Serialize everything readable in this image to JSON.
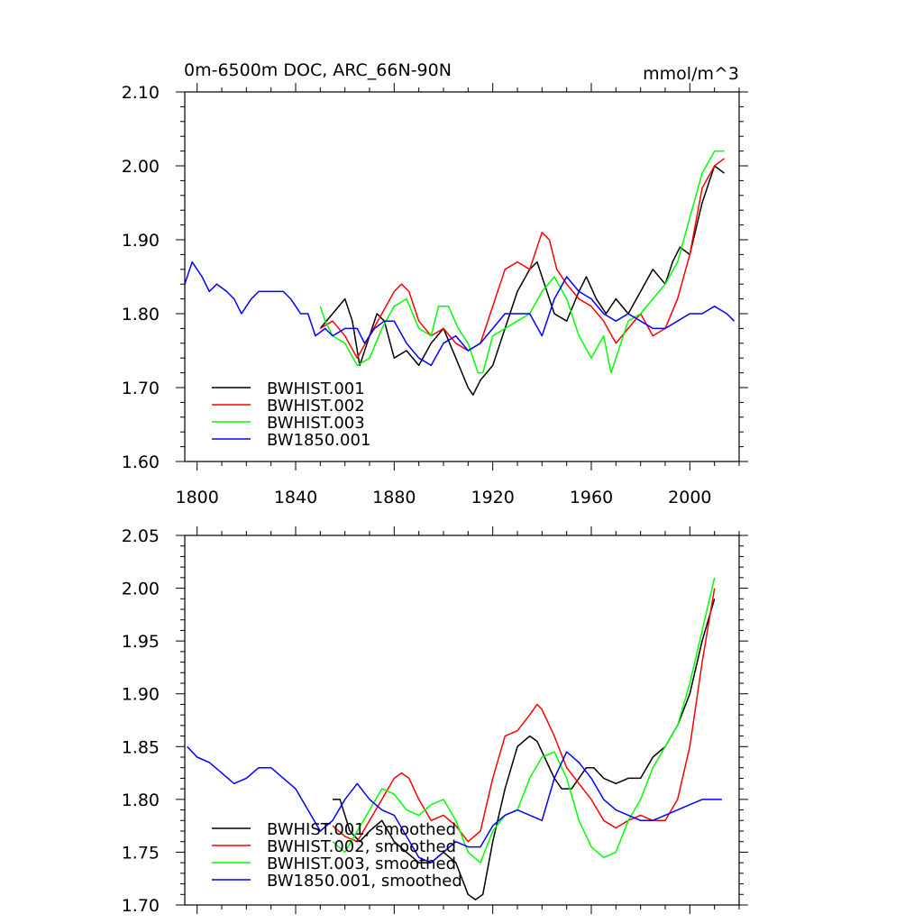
{
  "chart_data": [
    {
      "type": "line",
      "title": "0m-6500m DOC, ARC_66N-90N",
      "units": "mmol/m^3",
      "xlim": [
        1795,
        2020
      ],
      "ylim": [
        1.6,
        2.1
      ],
      "xticks": [
        1800,
        1840,
        1880,
        1920,
        1960,
        2000
      ],
      "xtick_labels": [
        "1800",
        "1840",
        "1880",
        "1920",
        "1960",
        "2000"
      ],
      "yticks": [
        1.6,
        1.7,
        1.8,
        1.9,
        2.0,
        2.1
      ],
      "ytick_labels": [
        "1.60",
        "1.70",
        "1.80",
        "1.90",
        "2.00",
        "2.10"
      ],
      "legend": [
        "BWHIST.001",
        "BWHIST.002",
        "BWHIST.003",
        "BW1850.001"
      ],
      "series": [
        {
          "name": "BWHIST.001",
          "color": "#000000",
          "x": [
            1850,
            1855,
            1860,
            1863,
            1866,
            1870,
            1873,
            1876,
            1880,
            1885,
            1890,
            1895,
            1900,
            1905,
            1910,
            1912,
            1915,
            1920,
            1925,
            1930,
            1935,
            1938,
            1940,
            1945,
            1950,
            1955,
            1958,
            1962,
            1966,
            1970,
            1975,
            1980,
            1985,
            1990,
            1993,
            1996,
            2000,
            2005,
            2010,
            2014
          ],
          "y": [
            1.78,
            1.8,
            1.82,
            1.79,
            1.73,
            1.77,
            1.8,
            1.79,
            1.74,
            1.75,
            1.73,
            1.76,
            1.78,
            1.74,
            1.7,
            1.69,
            1.71,
            1.73,
            1.78,
            1.83,
            1.86,
            1.87,
            1.85,
            1.8,
            1.79,
            1.83,
            1.85,
            1.82,
            1.8,
            1.82,
            1.8,
            1.83,
            1.86,
            1.84,
            1.87,
            1.89,
            1.88,
            1.95,
            2.0,
            1.99
          ]
        },
        {
          "name": "BWHIST.002",
          "color": "#ff0000",
          "x": [
            1850,
            1855,
            1860,
            1865,
            1870,
            1875,
            1880,
            1883,
            1886,
            1890,
            1895,
            1900,
            1905,
            1910,
            1915,
            1920,
            1925,
            1930,
            1935,
            1938,
            1940,
            1943,
            1946,
            1950,
            1955,
            1960,
            1965,
            1970,
            1975,
            1980,
            1985,
            1990,
            1995,
            2000,
            2005,
            2010,
            2014
          ],
          "y": [
            1.78,
            1.79,
            1.77,
            1.74,
            1.77,
            1.8,
            1.83,
            1.84,
            1.83,
            1.79,
            1.77,
            1.78,
            1.76,
            1.75,
            1.76,
            1.81,
            1.86,
            1.87,
            1.86,
            1.89,
            1.91,
            1.9,
            1.86,
            1.84,
            1.82,
            1.81,
            1.79,
            1.76,
            1.78,
            1.8,
            1.77,
            1.78,
            1.82,
            1.88,
            1.97,
            2.0,
            2.01
          ]
        },
        {
          "name": "BWHIST.003",
          "color": "#00ff00",
          "x": [
            1850,
            1852,
            1855,
            1860,
            1865,
            1870,
            1875,
            1880,
            1885,
            1890,
            1895,
            1898,
            1902,
            1906,
            1910,
            1914,
            1916,
            1920,
            1925,
            1930,
            1935,
            1940,
            1945,
            1950,
            1955,
            1960,
            1965,
            1968,
            1972,
            1975,
            1980,
            1985,
            1990,
            1995,
            2000,
            2005,
            2010,
            2014
          ],
          "y": [
            1.81,
            1.79,
            1.77,
            1.76,
            1.73,
            1.74,
            1.78,
            1.81,
            1.82,
            1.78,
            1.77,
            1.81,
            1.81,
            1.78,
            1.76,
            1.72,
            1.72,
            1.77,
            1.78,
            1.79,
            1.8,
            1.83,
            1.85,
            1.82,
            1.77,
            1.74,
            1.77,
            1.72,
            1.76,
            1.79,
            1.8,
            1.82,
            1.84,
            1.87,
            1.93,
            1.99,
            2.02,
            2.02
          ]
        },
        {
          "name": "BW1850.001",
          "color": "#0000ff",
          "x": [
            1795,
            1798,
            1802,
            1805,
            1808,
            1812,
            1815,
            1818,
            1822,
            1825,
            1830,
            1835,
            1838,
            1842,
            1845,
            1848,
            1852,
            1855,
            1860,
            1865,
            1868,
            1872,
            1876,
            1880,
            1885,
            1890,
            1895,
            1900,
            1905,
            1910,
            1915,
            1920,
            1925,
            1930,
            1935,
            1940,
            1945,
            1950,
            1955,
            1960,
            1965,
            1970,
            1975,
            1980,
            1985,
            1990,
            1995,
            2000,
            2005,
            2010,
            2015,
            2018
          ],
          "y": [
            1.84,
            1.87,
            1.85,
            1.83,
            1.84,
            1.83,
            1.82,
            1.8,
            1.82,
            1.83,
            1.83,
            1.83,
            1.82,
            1.8,
            1.8,
            1.77,
            1.78,
            1.77,
            1.78,
            1.78,
            1.76,
            1.78,
            1.79,
            1.79,
            1.76,
            1.74,
            1.73,
            1.76,
            1.77,
            1.75,
            1.76,
            1.78,
            1.8,
            1.8,
            1.8,
            1.77,
            1.82,
            1.85,
            1.83,
            1.82,
            1.8,
            1.79,
            1.8,
            1.79,
            1.78,
            1.78,
            1.79,
            1.8,
            1.8,
            1.81,
            1.8,
            1.79
          ]
        }
      ]
    },
    {
      "type": "line",
      "xlim": [
        1795,
        2020
      ],
      "ylim": [
        1.7,
        2.05
      ],
      "xticks": [
        1800,
        1840,
        1880,
        1920,
        1960,
        2000
      ],
      "yticks": [
        1.7,
        1.75,
        1.8,
        1.85,
        1.9,
        1.95,
        2.0,
        2.05
      ],
      "ytick_labels": [
        "1.70",
        "1.75",
        "1.80",
        "1.85",
        "1.90",
        "1.95",
        "2.00",
        "2.05"
      ],
      "legend": [
        "BWHIST.001, smoothed",
        "BWHIST.002, smoothed",
        "BWHIST.003, smoothed",
        "BW1850.001, smoothed"
      ],
      "series": [
        {
          "name": "BWHIST.001, smoothed",
          "color": "#000000",
          "x": [
            1855,
            1858,
            1862,
            1866,
            1870,
            1875,
            1880,
            1885,
            1890,
            1895,
            1900,
            1905,
            1910,
            1913,
            1916,
            1920,
            1925,
            1930,
            1935,
            1938,
            1941,
            1945,
            1948,
            1952,
            1955,
            1958,
            1961,
            1965,
            1970,
            1975,
            1980,
            1985,
            1990,
            1995,
            2000,
            2005,
            2010
          ],
          "y": [
            1.8,
            1.8,
            1.77,
            1.76,
            1.77,
            1.78,
            1.76,
            1.75,
            1.74,
            1.74,
            1.75,
            1.74,
            1.71,
            1.705,
            1.71,
            1.76,
            1.81,
            1.85,
            1.86,
            1.855,
            1.84,
            1.82,
            1.81,
            1.81,
            1.82,
            1.83,
            1.83,
            1.82,
            1.815,
            1.82,
            1.82,
            1.84,
            1.85,
            1.87,
            1.9,
            1.95,
            1.99
          ]
        },
        {
          "name": "BWHIST.002, smoothed",
          "color": "#ff0000",
          "x": [
            1855,
            1860,
            1865,
            1870,
            1875,
            1880,
            1883,
            1886,
            1890,
            1895,
            1900,
            1905,
            1910,
            1915,
            1920,
            1925,
            1930,
            1935,
            1938,
            1940,
            1945,
            1950,
            1955,
            1960,
            1965,
            1970,
            1975,
            1980,
            1985,
            1990,
            1995,
            2000,
            2005,
            2010
          ],
          "y": [
            1.775,
            1.765,
            1.76,
            1.78,
            1.8,
            1.82,
            1.825,
            1.82,
            1.8,
            1.78,
            1.785,
            1.775,
            1.76,
            1.77,
            1.82,
            1.86,
            1.865,
            1.88,
            1.89,
            1.885,
            1.86,
            1.83,
            1.815,
            1.8,
            1.78,
            1.773,
            1.78,
            1.785,
            1.78,
            1.78,
            1.8,
            1.85,
            1.93,
            2.0
          ]
        },
        {
          "name": "BWHIST.003, smoothed",
          "color": "#00ff00",
          "x": [
            1855,
            1860,
            1865,
            1870,
            1875,
            1880,
            1885,
            1890,
            1895,
            1900,
            1905,
            1910,
            1915,
            1920,
            1925,
            1930,
            1935,
            1940,
            1945,
            1950,
            1955,
            1960,
            1965,
            1970,
            1975,
            1980,
            1985,
            1990,
            1995,
            2000,
            2005,
            2010
          ],
          "y": [
            1.76,
            1.75,
            1.77,
            1.79,
            1.81,
            1.805,
            1.79,
            1.785,
            1.795,
            1.8,
            1.78,
            1.75,
            1.74,
            1.77,
            1.785,
            1.79,
            1.82,
            1.84,
            1.845,
            1.82,
            1.78,
            1.755,
            1.745,
            1.75,
            1.78,
            1.8,
            1.83,
            1.85,
            1.87,
            1.91,
            1.96,
            2.01
          ]
        },
        {
          "name": "BW1850.001, smoothed",
          "color": "#0000ff",
          "x": [
            1796,
            1800,
            1805,
            1810,
            1815,
            1820,
            1825,
            1830,
            1835,
            1840,
            1845,
            1850,
            1855,
            1860,
            1865,
            1870,
            1875,
            1880,
            1885,
            1890,
            1895,
            1900,
            1905,
            1910,
            1915,
            1920,
            1925,
            1930,
            1935,
            1940,
            1945,
            1950,
            1955,
            1960,
            1965,
            1970,
            1975,
            1980,
            1985,
            1990,
            1995,
            2000,
            2005,
            2010,
            2013
          ],
          "y": [
            1.85,
            1.84,
            1.835,
            1.825,
            1.815,
            1.82,
            1.83,
            1.83,
            1.82,
            1.81,
            1.79,
            1.77,
            1.78,
            1.8,
            1.815,
            1.8,
            1.79,
            1.785,
            1.765,
            1.745,
            1.74,
            1.75,
            1.76,
            1.755,
            1.755,
            1.775,
            1.785,
            1.79,
            1.785,
            1.78,
            1.82,
            1.845,
            1.835,
            1.82,
            1.8,
            1.79,
            1.785,
            1.78,
            1.78,
            1.785,
            1.79,
            1.795,
            1.8,
            1.8,
            1.8
          ]
        }
      ]
    }
  ]
}
